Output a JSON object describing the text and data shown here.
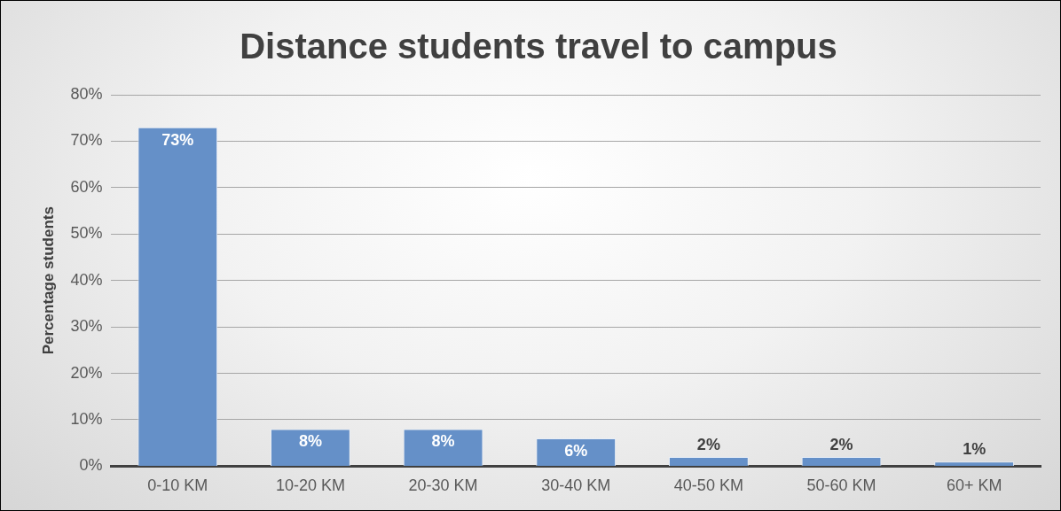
{
  "chart_data": {
    "type": "bar",
    "title": "Distance students travel to campus",
    "ylabel": "Percentage students",
    "categories": [
      "0-10 KM",
      "10-20 KM",
      "20-30 KM",
      "30-40 KM",
      "40-50 KM",
      "50-60 KM",
      "60+ KM"
    ],
    "values": [
      73,
      8,
      8,
      6,
      2,
      2,
      1
    ],
    "color": "#6590c8",
    "value_labels": [
      "73%",
      "8%",
      "8%",
      "6%",
      "2%",
      "2%",
      "1%"
    ],
    "ylim": [
      0,
      80
    ],
    "yticks": [
      {
        "value": 0,
        "label": "0%"
      },
      {
        "value": 10,
        "label": "10%"
      },
      {
        "value": 20,
        "label": "20%"
      },
      {
        "value": 30,
        "label": "30%"
      },
      {
        "value": 40,
        "label": "40%"
      },
      {
        "value": 50,
        "label": "50%"
      },
      {
        "value": 60,
        "label": "60%"
      },
      {
        "value": 70,
        "label": "70%"
      },
      {
        "value": 80,
        "label": "80%"
      }
    ],
    "grid": "y",
    "legend": false
  }
}
